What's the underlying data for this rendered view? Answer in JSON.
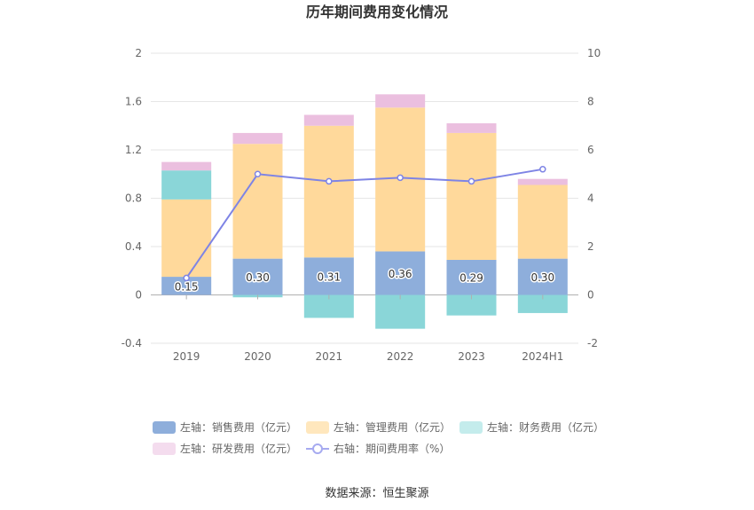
{
  "chart_data": {
    "type": "bar",
    "title": "历年期间费用变化情况",
    "categories": [
      "2019",
      "2020",
      "2021",
      "2022",
      "2023",
      "2024H1"
    ],
    "y_left": {
      "min": -0.4,
      "max": 2,
      "ticks": [
        "-0.4",
        "0",
        "0.4",
        "0.8",
        "1.2",
        "1.6",
        "2"
      ]
    },
    "y_right": {
      "min": -2,
      "max": 10,
      "ticks": [
        "-2",
        "0",
        "2",
        "4",
        "6",
        "8",
        "10"
      ]
    },
    "series": [
      {
        "name": "左轴：销售费用（亿元）",
        "axis": "left",
        "kind": "bar",
        "color": "#8eaedb",
        "values": [
          0.15,
          0.3,
          0.31,
          0.36,
          0.29,
          0.3
        ],
        "labels": [
          "0.15",
          "0.30",
          "0.31",
          "0.36",
          "0.29",
          "0.30"
        ]
      },
      {
        "name": "左轴：管理费用（亿元）",
        "axis": "left",
        "kind": "bar",
        "color": "#ffd99b",
        "values": [
          0.64,
          0.95,
          1.09,
          1.19,
          1.05,
          0.61
        ]
      },
      {
        "name": "左轴：财务费用（亿元）",
        "axis": "left",
        "kind": "bar",
        "color": "#8ad6d8",
        "values": [
          0.24,
          -0.02,
          -0.19,
          -0.28,
          -0.17,
          -0.15
        ]
      },
      {
        "name": "左轴：研发费用（亿元）",
        "axis": "left",
        "kind": "bar",
        "color": "#ebbfdf",
        "values": [
          0.07,
          0.09,
          0.09,
          0.11,
          0.08,
          0.05
        ]
      },
      {
        "name": "右轴：期间费用率（%）",
        "axis": "right",
        "kind": "line",
        "color": "#7e84e5",
        "values": [
          0.7,
          5.0,
          4.7,
          4.85,
          4.7,
          5.2
        ]
      }
    ],
    "legend": {
      "position": "bottom",
      "swatch_colors": [
        "#8eaedb",
        "#ffe7bd",
        "#c4ecec",
        "#f4dcee",
        "#a6aaf0"
      ]
    },
    "grid": true
  },
  "footer": {
    "source": "数据来源：恒生聚源"
  }
}
